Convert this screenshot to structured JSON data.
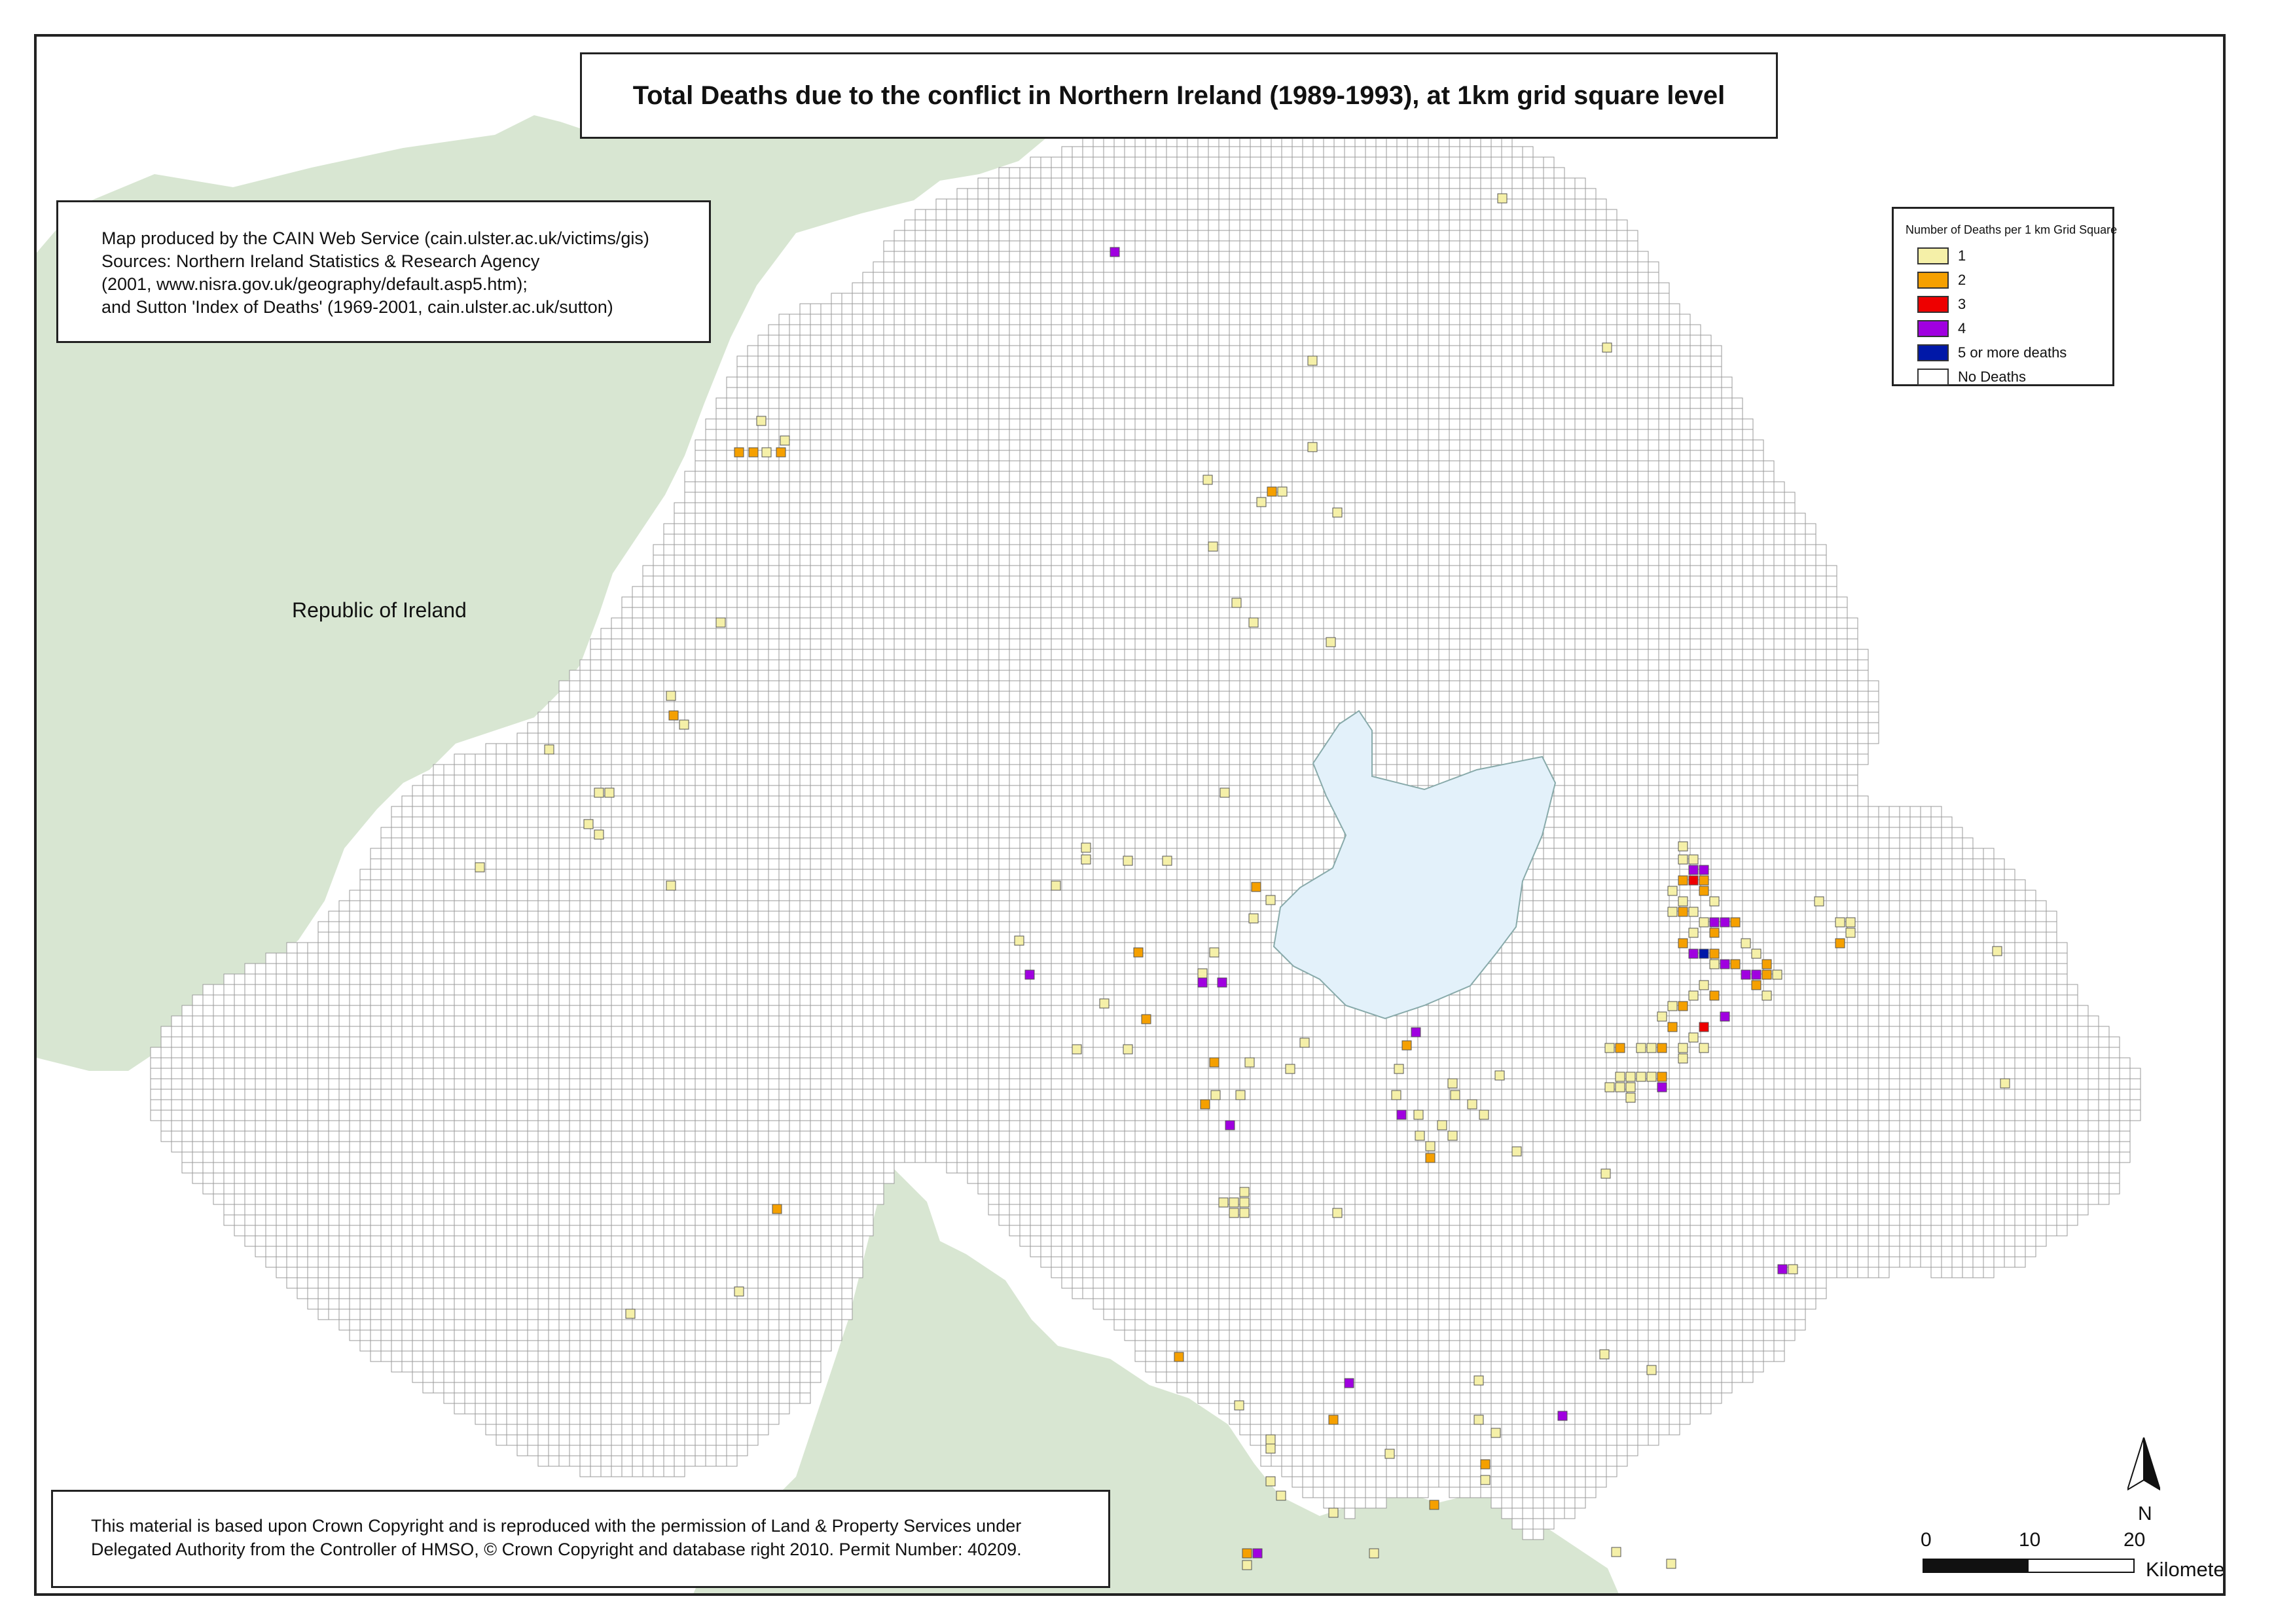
{
  "title": "Total Deaths due to the conflict in Northern Ireland (1989-1993), at 1km grid square level",
  "credits": [
    "Map produced by the CAIN Web Service (cain.ulster.ac.uk/victims/gis)",
    "Sources: Northern Ireland Statistics & Research Agency",
    "(2001, www.nisra.gov.uk/geography/default.asp5.htm);",
    "and Sutton 'Index of Deaths' (1969-2001, cain.ulster.ac.uk/sutton)"
  ],
  "copyright": [
    "This material is based upon Crown Copyright and is reproduced with the permission of Land & Property Services under",
    "Delegated Authority from the Controller of HMSO, © Crown Copyright and database right 2010. Permit Number: 40209."
  ],
  "place_label": "Republic of Ireland",
  "legend": {
    "title": "Number of Deaths per 1 km Grid Square",
    "items": [
      {
        "label": "1",
        "color": "#f5f0a8"
      },
      {
        "label": "2",
        "color": "#f5a000"
      },
      {
        "label": "3",
        "color": "#ee0000"
      },
      {
        "label": "4",
        "color": "#a000e0"
      },
      {
        "label": "5 or more deaths",
        "color": "#0018a8"
      },
      {
        "label": "No Deaths",
        "color": "#ffffff"
      }
    ]
  },
  "north_label": "N",
  "scale": {
    "ticks": [
      "0",
      "10",
      "20"
    ],
    "unit": "Kilometers"
  },
  "colors": {
    "land_roi": "#d8e6d2",
    "lough": "#e3f1fa",
    "grid_line": "#9a9a9a"
  }
}
